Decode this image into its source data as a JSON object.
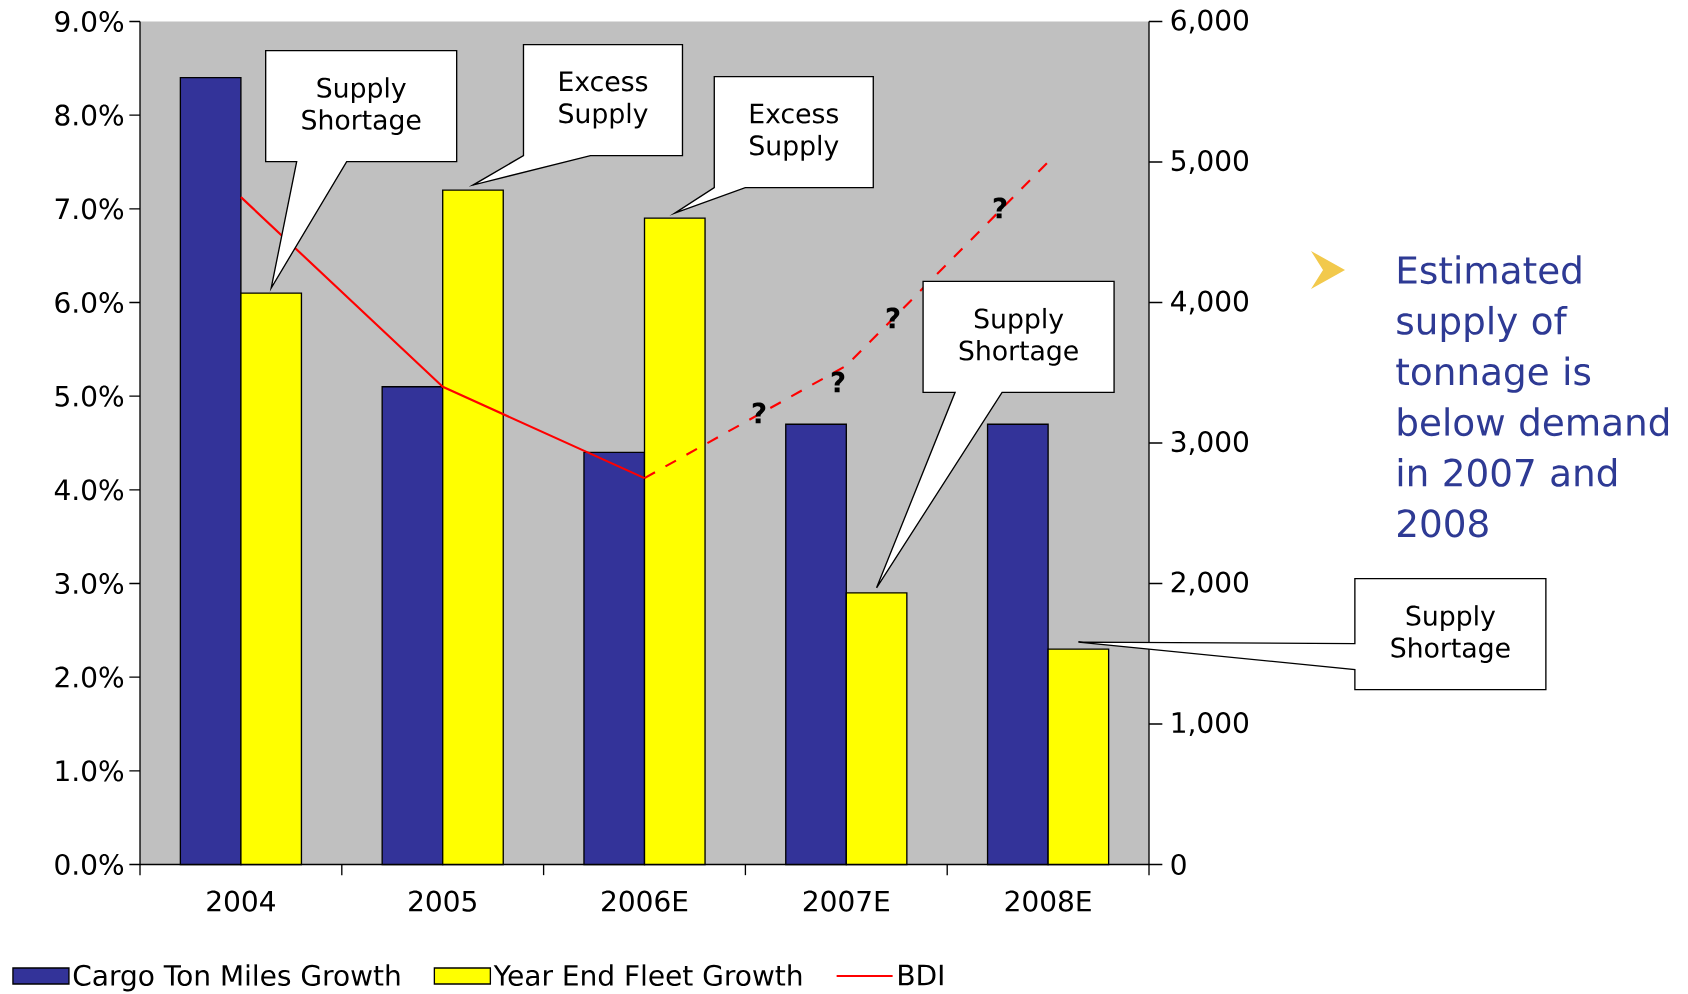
{
  "chart_data": {
    "type": "bar",
    "categories": [
      "2004",
      "2005",
      "2006E",
      "2007E",
      "2008E"
    ],
    "series": [
      {
        "name": "Cargo Ton Miles Growth",
        "color": "#333399",
        "values": [
          8.4,
          5.1,
          4.4,
          4.7,
          4.7
        ]
      },
      {
        "name": "Year End Fleet Growth",
        "color": "#ffff00",
        "values": [
          6.1,
          7.2,
          6.9,
          2.9,
          2.3
        ]
      },
      {
        "name": "BDI",
        "type": "line",
        "axis": "y2",
        "color": "#ff0000",
        "line_style": "solid",
        "values": [
          4750,
          3400,
          2750,
          null,
          null
        ]
      },
      {
        "type": "line",
        "axis": "y2",
        "color": "#ff0000",
        "line_style": "dashed",
        "values": [
          null,
          null,
          2750,
          3550,
          5000
        ]
      }
    ],
    "ylim": [
      0,
      9
    ],
    "yticks": [
      {
        "value": 0,
        "label": "0.0%"
      },
      {
        "value": 1,
        "label": "1.0%"
      },
      {
        "value": 2,
        "label": "2.0%"
      },
      {
        "value": 3,
        "label": "3.0%"
      },
      {
        "value": 4,
        "label": "4.0%"
      },
      {
        "value": 5,
        "label": "5.0%"
      },
      {
        "value": 6,
        "label": "6.0%"
      },
      {
        "value": 7,
        "label": "7.0%"
      },
      {
        "value": 8,
        "label": "8.0%"
      },
      {
        "value": 9,
        "label": "9.0%"
      }
    ],
    "y2lim": [
      0,
      6000
    ],
    "y2ticks": [
      0,
      {
        "value": 1000,
        "label": "1,000"
      },
      {
        "value": 2000,
        "label": "2,000"
      },
      {
        "value": 3000,
        "label": "3,000"
      },
      {
        "value": 4000,
        "label": "4,000"
      },
      {
        "value": 5000,
        "label": "5,000"
      },
      {
        "value": 6000,
        "label": "6,000"
      }
    ],
    "legend": "bottom",
    "annotations": [
      "Supply Shortage",
      "Excess Supply",
      "Excess Supply",
      "Supply Shortage",
      "Supply Shortage",
      "?",
      "?",
      "?",
      "?",
      "Estimated supply of tonnage is below demand in 2007 and 2008"
    ]
  }
}
